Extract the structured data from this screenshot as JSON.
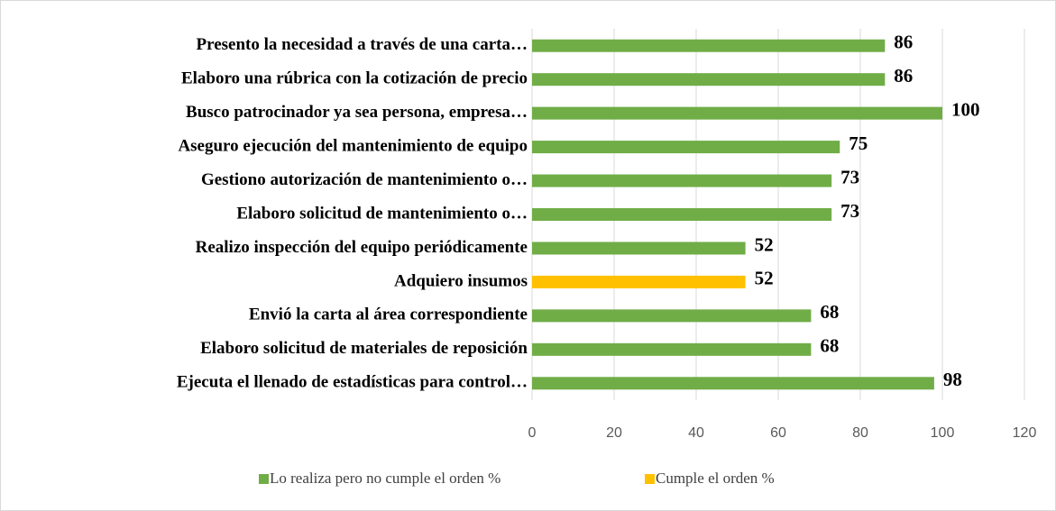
{
  "chart_data": {
    "type": "bar",
    "orientation": "horizontal",
    "categories": [
      "Presento la necesidad a través de una carta…",
      "Elaboro una rúbrica con la cotización de precio",
      "Busco patrocinador ya sea persona, empresa…",
      "Aseguro ejecución del mantenimiento de equipo",
      "Gestiono autorización de mantenimiento o…",
      "Elaboro  solicitud de mantenimiento o…",
      "Realizo inspección del equipo periódicamente",
      "Adquiero insumos",
      "Envió la carta al área correspondiente",
      "Elaboro  solicitud de materiales de reposición",
      "Ejecuta el llenado de estadísticas para control…"
    ],
    "series": [
      {
        "name": "Lo realiza pero no cumple el orden %",
        "color": "#70ad47",
        "values": [
          86,
          86,
          100,
          75,
          73,
          73,
          52,
          null,
          68,
          68,
          98
        ]
      },
      {
        "name": "Cumple el orden %",
        "color": "#ffc000",
        "values": [
          null,
          null,
          null,
          null,
          null,
          null,
          null,
          52,
          null,
          null,
          null
        ]
      }
    ],
    "xlim": [
      0,
      120
    ],
    "xticks": [
      0,
      20,
      40,
      60,
      80,
      100,
      120
    ],
    "grid": true,
    "legend": "bottom"
  }
}
